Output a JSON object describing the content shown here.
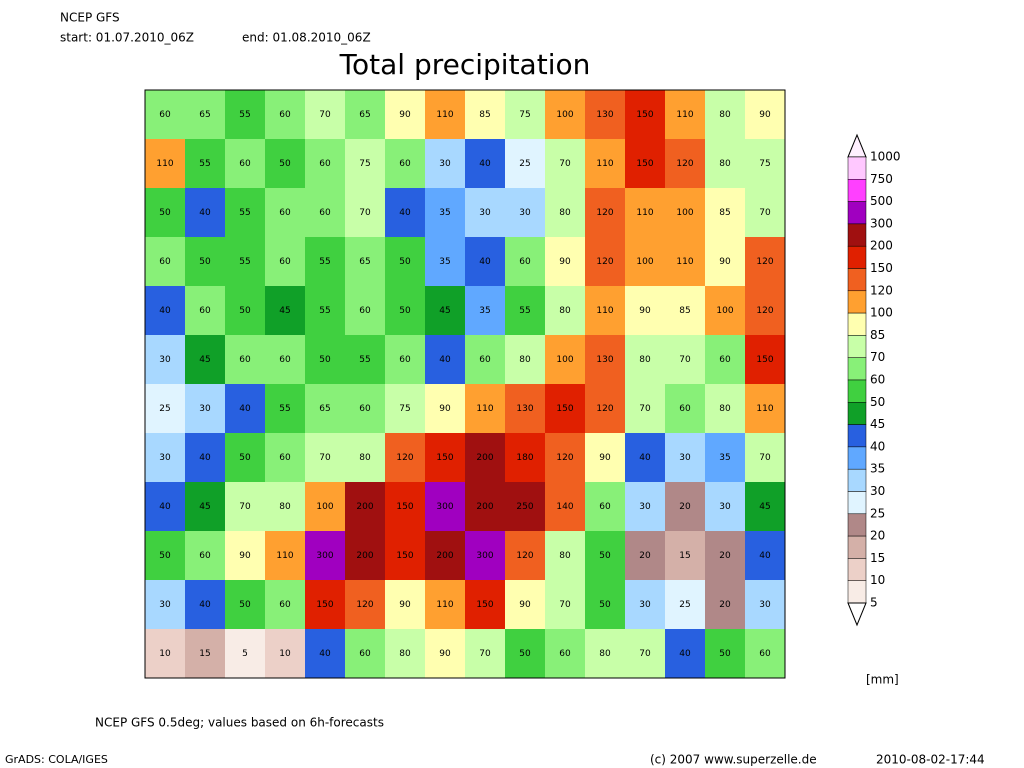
{
  "header": {
    "model": "NCEP GFS",
    "start": "start: 01.07.2010_06Z",
    "end": "end: 01.08.2010_06Z",
    "title": "Total precipitation"
  },
  "legend": {
    "levels": [
      1000,
      750,
      500,
      300,
      200,
      150,
      120,
      100,
      85,
      70,
      60,
      50,
      45,
      40,
      35,
      30,
      25,
      20,
      15,
      10,
      5
    ],
    "colors": [
      "#fff0ff",
      "#ffc8ff",
      "#ff40ff",
      "#a000c0",
      "#a01010",
      "#e02000",
      "#f06020",
      "#ffa030",
      "#ffffb0",
      "#c8ffa8",
      "#88f078",
      "#40d040",
      "#10a028",
      "#2860e0",
      "#60a8ff",
      "#a8d8ff",
      "#e0f4ff",
      "#b08888",
      "#d4b0a8",
      "#ecd0c8",
      "#f8ece6",
      "#ffffff"
    ],
    "unit": "[mm]"
  },
  "field": {
    "rows": [
      [
        60,
        65,
        55,
        60,
        70,
        65,
        90,
        110,
        85,
        75,
        100,
        130,
        150,
        110,
        80,
        90
      ],
      [
        110,
        55,
        60,
        50,
        60,
        75,
        60,
        30,
        40,
        25,
        70,
        110,
        150,
        120,
        80,
        75
      ],
      [
        50,
        40,
        55,
        60,
        60,
        70,
        40,
        35,
        30,
        30,
        80,
        120,
        110,
        100,
        85,
        70
      ],
      [
        60,
        50,
        55,
        60,
        55,
        65,
        50,
        35,
        40,
        60,
        90,
        120,
        100,
        110,
        90,
        120
      ],
      [
        40,
        60,
        50,
        45,
        55,
        60,
        50,
        45,
        35,
        55,
        80,
        110,
        90,
        85,
        100,
        120
      ],
      [
        30,
        45,
        60,
        60,
        50,
        55,
        60,
        40,
        60,
        80,
        100,
        130,
        80,
        70,
        60,
        150
      ],
      [
        25,
        30,
        40,
        55,
        65,
        60,
        75,
        90,
        110,
        130,
        150,
        120,
        70,
        60,
        80,
        110
      ],
      [
        30,
        40,
        50,
        60,
        70,
        80,
        120,
        150,
        200,
        180,
        120,
        90,
        40,
        30,
        35,
        70
      ],
      [
        40,
        45,
        70,
        80,
        100,
        200,
        150,
        300,
        200,
        250,
        140,
        60,
        30,
        20,
        30,
        45
      ],
      [
        50,
        60,
        90,
        110,
        300,
        200,
        150,
        200,
        300,
        120,
        80,
        50,
        20,
        15,
        20,
        40
      ],
      [
        30,
        40,
        50,
        60,
        150,
        120,
        90,
        110,
        150,
        90,
        70,
        50,
        30,
        25,
        20,
        30
      ],
      [
        10,
        15,
        5,
        10,
        40,
        60,
        80,
        90,
        70,
        50,
        60,
        80,
        70,
        40,
        50,
        60
      ]
    ]
  },
  "footer": {
    "note": "NCEP GFS 0.5deg; values based on 6h-forecasts",
    "software": "GrADS: COLA/IGES",
    "copyright": "(c) 2007 www.superzelle.de",
    "timestamp": "2010-08-02-17:44"
  }
}
